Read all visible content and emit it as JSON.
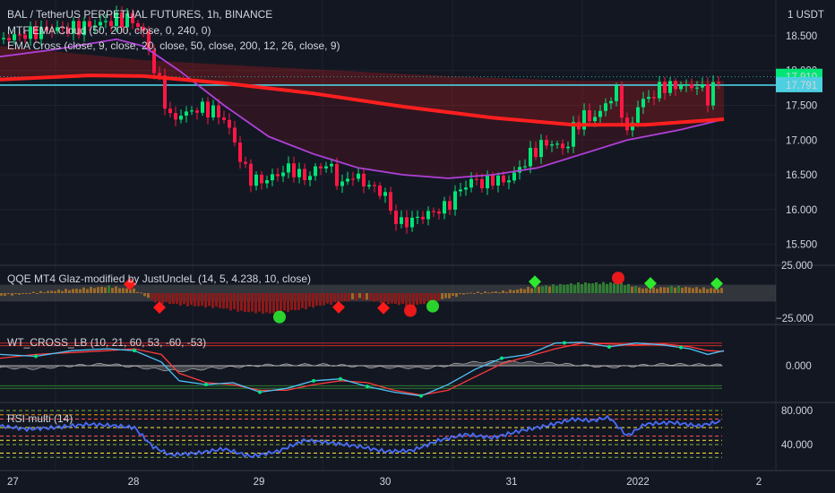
{
  "header": {
    "title": "BAL / TetherUS PERPETUAL FUTURES, 1h, BINANCE",
    "currency": "1 USDT"
  },
  "indicators": {
    "ema_cloud": "MTF EMA Cloud (50, 200, close, 0, 240, 0)",
    "ema_cross": "EMA Cross (close, 9, close, 20, close, 50, close, 200, 12, 26, close, 9)",
    "qqe": "QQE MT4 Glaz-modified by JustUncleL (14, 5, 4.238, 10, close)",
    "wt": "WT_CROSS_LB (10, 21, 60, 53, -60, -53)",
    "rsi": "RSI multi (14)"
  },
  "price_badges": {
    "last": "17.910",
    "level": "17.791"
  },
  "colors": {
    "background": "#131722",
    "up": "#00e676",
    "down": "#ff1744",
    "ema200": "#ff1f1f",
    "ema50": "#b040d8",
    "level_line": "#4dd0e1",
    "wt_fast": "#4fc3f7",
    "wt_slow": "#ff3b3b",
    "rsi": "#4a6cf7"
  },
  "chart_data": [
    {
      "type": "candlestick",
      "title": "BAL / TetherUS PERPETUAL FUTURES, 1h, BINANCE",
      "x_tick_labels": [
        "27",
        "28",
        "29",
        "30",
        "31",
        "2022",
        "2"
      ],
      "y_tick_labels": [
        "18.500",
        "18.000",
        "17.500",
        "17.000",
        "16.500",
        "16.000",
        "15.500"
      ],
      "ylim": [
        15.25,
        18.95
      ],
      "close_path": [
        [
          0,
          18.45
        ],
        [
          20,
          18.5
        ],
        [
          40,
          18.55
        ],
        [
          60,
          18.6
        ],
        [
          80,
          18.6
        ],
        [
          100,
          18.65
        ],
        [
          120,
          18.7
        ],
        [
          140,
          18.75
        ],
        [
          150,
          18.7
        ],
        [
          160,
          18.55
        ],
        [
          170,
          18.1
        ],
        [
          180,
          17.75
        ],
        [
          190,
          17.3
        ],
        [
          200,
          17.35
        ],
        [
          210,
          17.4
        ],
        [
          220,
          17.45
        ],
        [
          230,
          17.45
        ],
        [
          240,
          17.4
        ],
        [
          250,
          17.3
        ],
        [
          260,
          17.05
        ],
        [
          270,
          16.65
        ],
        [
          280,
          16.45
        ],
        [
          290,
          16.4
        ],
        [
          300,
          16.45
        ],
        [
          310,
          16.5
        ],
        [
          320,
          16.6
        ],
        [
          330,
          16.55
        ],
        [
          340,
          16.45
        ],
        [
          350,
          16.55
        ],
        [
          360,
          16.65
        ],
        [
          370,
          16.6
        ],
        [
          380,
          16.3
        ],
        [
          390,
          16.5
        ],
        [
          400,
          16.45
        ],
        [
          410,
          16.35
        ],
        [
          420,
          16.3
        ],
        [
          430,
          16.2
        ],
        [
          440,
          15.85
        ],
        [
          450,
          15.8
        ],
        [
          460,
          15.85
        ],
        [
          470,
          15.9
        ],
        [
          480,
          15.95
        ],
        [
          490,
          16.0
        ],
        [
          500,
          16.05
        ],
        [
          510,
          16.25
        ],
        [
          520,
          16.35
        ],
        [
          530,
          16.45
        ],
        [
          540,
          16.35
        ],
        [
          550,
          16.45
        ],
        [
          560,
          16.4
        ],
        [
          570,
          16.45
        ],
        [
          580,
          16.6
        ],
        [
          590,
          16.75
        ],
        [
          600,
          16.9
        ],
        [
          610,
          16.95
        ],
        [
          620,
          16.95
        ],
        [
          630,
          16.85
        ],
        [
          640,
          17.15
        ],
        [
          650,
          17.35
        ],
        [
          660,
          17.3
        ],
        [
          670,
          17.4
        ],
        [
          680,
          17.6
        ],
        [
          690,
          17.7
        ],
        [
          700,
          17.05
        ],
        [
          710,
          17.45
        ],
        [
          720,
          17.6
        ],
        [
          730,
          17.65
        ],
        [
          740,
          17.8
        ],
        [
          750,
          17.75
        ],
        [
          760,
          17.8
        ],
        [
          770,
          17.75
        ],
        [
          780,
          17.8
        ],
        [
          790,
          17.6
        ],
        [
          800,
          17.85
        ],
        [
          808,
          17.91
        ]
      ],
      "ema200": [
        [
          0,
          17.87
        ],
        [
          100,
          17.93
        ],
        [
          160,
          17.92
        ],
        [
          250,
          17.82
        ],
        [
          350,
          17.67
        ],
        [
          450,
          17.48
        ],
        [
          550,
          17.32
        ],
        [
          640,
          17.22
        ],
        [
          720,
          17.22
        ],
        [
          808,
          17.3
        ]
      ],
      "ema_cloud_top": [
        [
          0,
          18.35
        ],
        [
          160,
          18.15
        ],
        [
          300,
          18.05
        ],
        [
          500,
          17.92
        ],
        [
          650,
          17.85
        ],
        [
          808,
          17.85
        ]
      ],
      "ema50": [
        [
          0,
          18.2
        ],
        [
          60,
          18.3
        ],
        [
          130,
          18.45
        ],
        [
          160,
          18.35
        ],
        [
          200,
          18.0
        ],
        [
          250,
          17.5
        ],
        [
          300,
          17.05
        ],
        [
          350,
          16.8
        ],
        [
          400,
          16.6
        ],
        [
          450,
          16.5
        ],
        [
          500,
          16.45
        ],
        [
          550,
          16.5
        ],
        [
          600,
          16.6
        ],
        [
          650,
          16.8
        ],
        [
          700,
          17.0
        ],
        [
          760,
          17.15
        ],
        [
          808,
          17.3
        ]
      ],
      "level_line": 17.791,
      "last_price": 17.91
    },
    {
      "type": "histogram",
      "title": "QQE MT4 Glaz-modified by JustUncleL (14, 5, 4.238, 10, close)",
      "y_tick_labels": [
        "25.000",
        "−25.000"
      ],
      "ylim": [
        -32,
        32
      ],
      "hist_points": [
        [
          0,
          -3
        ],
        [
          60,
          3
        ],
        [
          120,
          8
        ],
        [
          150,
          4
        ],
        [
          170,
          -10
        ],
        [
          200,
          -14
        ],
        [
          240,
          -17
        ],
        [
          270,
          -22
        ],
        [
          300,
          -24
        ],
        [
          330,
          -20
        ],
        [
          360,
          -14
        ],
        [
          400,
          -7
        ],
        [
          430,
          -12
        ],
        [
          460,
          -15
        ],
        [
          490,
          -8
        ],
        [
          520,
          0
        ],
        [
          560,
          2
        ],
        [
          600,
          8
        ],
        [
          650,
          12
        ],
        [
          690,
          12
        ],
        [
          720,
          5
        ],
        [
          750,
          8
        ],
        [
          780,
          6
        ],
        [
          808,
          5
        ]
      ],
      "signals": [
        {
          "x": 145,
          "kind": "red-diamond"
        },
        {
          "x": 178,
          "kind": "red-diamond"
        },
        {
          "x": 312,
          "kind": "green-circle"
        },
        {
          "x": 378,
          "kind": "red-diamond"
        },
        {
          "x": 428,
          "kind": "red-diamond"
        },
        {
          "x": 458,
          "kind": "red-circle"
        },
        {
          "x": 483,
          "kind": "green-circle"
        },
        {
          "x": 597,
          "kind": "green-diamond"
        },
        {
          "x": 690,
          "kind": "red-circle"
        },
        {
          "x": 726,
          "kind": "green-diamond"
        },
        {
          "x": 800,
          "kind": "green-diamond"
        }
      ]
    },
    {
      "type": "line",
      "title": "WT_CROSS_LB (10, 21, 60, 53, -60, -53)",
      "y_tick_labels": [
        "0.000"
      ],
      "ylim": [
        -95,
        95
      ],
      "wt_fast": [
        [
          0,
          30
        ],
        [
          40,
          25
        ],
        [
          80,
          40
        ],
        [
          120,
          45
        ],
        [
          150,
          40
        ],
        [
          180,
          10
        ],
        [
          200,
          -40
        ],
        [
          230,
          -50
        ],
        [
          260,
          -45
        ],
        [
          290,
          -70
        ],
        [
          320,
          -60
        ],
        [
          350,
          -40
        ],
        [
          380,
          -35
        ],
        [
          410,
          -55
        ],
        [
          440,
          -70
        ],
        [
          470,
          -80
        ],
        [
          500,
          -50
        ],
        [
          530,
          -10
        ],
        [
          560,
          20
        ],
        [
          590,
          30
        ],
        [
          620,
          60
        ],
        [
          650,
          62
        ],
        [
          680,
          50
        ],
        [
          710,
          60
        ],
        [
          740,
          55
        ],
        [
          770,
          45
        ],
        [
          790,
          30
        ],
        [
          808,
          40
        ]
      ],
      "wt_slow": [
        [
          0,
          20
        ],
        [
          40,
          30
        ],
        [
          80,
          35
        ],
        [
          120,
          40
        ],
        [
          150,
          45
        ],
        [
          180,
          30
        ],
        [
          200,
          -20
        ],
        [
          230,
          -45
        ],
        [
          260,
          -50
        ],
        [
          290,
          -65
        ],
        [
          320,
          -65
        ],
        [
          350,
          -50
        ],
        [
          380,
          -40
        ],
        [
          410,
          -45
        ],
        [
          440,
          -65
        ],
        [
          470,
          -78
        ],
        [
          500,
          -65
        ],
        [
          530,
          -30
        ],
        [
          560,
          5
        ],
        [
          590,
          25
        ],
        [
          620,
          45
        ],
        [
          650,
          60
        ],
        [
          680,
          58
        ],
        [
          710,
          55
        ],
        [
          740,
          58
        ],
        [
          770,
          50
        ],
        [
          790,
          40
        ],
        [
          808,
          38
        ]
      ],
      "hist": [
        [
          0,
          -5
        ],
        [
          40,
          -8
        ],
        [
          80,
          0
        ],
        [
          120,
          5
        ],
        [
          160,
          -6
        ],
        [
          200,
          -14
        ],
        [
          240,
          -6
        ],
        [
          300,
          2
        ],
        [
          360,
          3
        ],
        [
          420,
          -4
        ],
        [
          480,
          -6
        ],
        [
          520,
          8
        ],
        [
          560,
          12
        ],
        [
          620,
          6
        ],
        [
          680,
          -4
        ],
        [
          740,
          4
        ],
        [
          808,
          2
        ]
      ]
    },
    {
      "type": "line",
      "title": "RSI multi (14)",
      "y_tick_labels": [
        "80.000",
        "40.000"
      ],
      "ylim": [
        20,
        82
      ],
      "rsi": [
        [
          0,
          62
        ],
        [
          30,
          58
        ],
        [
          60,
          60
        ],
        [
          100,
          64
        ],
        [
          130,
          62
        ],
        [
          150,
          60
        ],
        [
          170,
          38
        ],
        [
          190,
          28
        ],
        [
          220,
          30
        ],
        [
          250,
          35
        ],
        [
          280,
          26
        ],
        [
          310,
          32
        ],
        [
          340,
          45
        ],
        [
          370,
          42
        ],
        [
          400,
          38
        ],
        [
          430,
          32
        ],
        [
          460,
          33
        ],
        [
          490,
          45
        ],
        [
          520,
          52
        ],
        [
          550,
          48
        ],
        [
          580,
          56
        ],
        [
          610,
          62
        ],
        [
          640,
          70
        ],
        [
          660,
          68
        ],
        [
          680,
          72
        ],
        [
          700,
          50
        ],
        [
          720,
          64
        ],
        [
          750,
          66
        ],
        [
          780,
          62
        ],
        [
          808,
          68
        ]
      ]
    }
  ]
}
